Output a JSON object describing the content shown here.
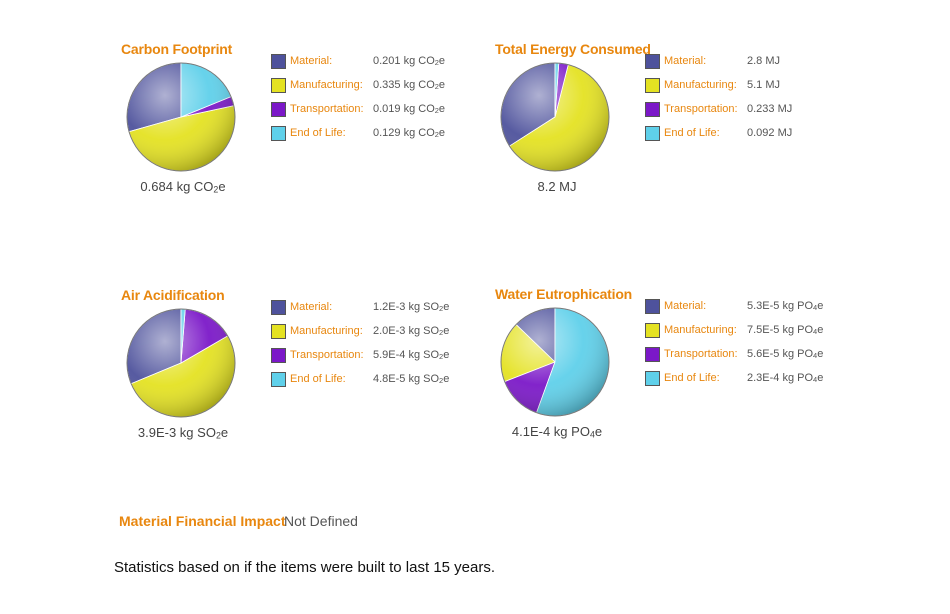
{
  "chart_data": [
    {
      "type": "pie",
      "title": "Carbon Footprint",
      "total": {
        "prefix": "0.684 kg CO",
        "sub": "2",
        "suffix": "e"
      },
      "slices": [
        {
          "label": "Material:",
          "value": 0.201,
          "display": {
            "prefix": "0.201 kg CO",
            "sub": "2",
            "suffix": "e"
          },
          "color": "#4e529c"
        },
        {
          "label": "Manufacturing:",
          "value": 0.335,
          "display": {
            "prefix": "0.335 kg CO",
            "sub": "2",
            "suffix": "e"
          },
          "color": "#e4e222"
        },
        {
          "label": "Transportation:",
          "value": 0.019,
          "display": {
            "prefix": "0.019 kg CO",
            "sub": "2",
            "suffix": "e"
          },
          "color": "#7b18c8"
        },
        {
          "label": "End of Life:",
          "value": 0.129,
          "display": {
            "prefix": "0.129 kg CO",
            "sub": "2",
            "suffix": "e"
          },
          "color": "#5fd0ea"
        }
      ]
    },
    {
      "type": "pie",
      "title": "Total Energy Consumed",
      "total": {
        "prefix": "8.2 MJ",
        "sub": "",
        "suffix": ""
      },
      "slices": [
        {
          "label": "Material:",
          "value": 2.8,
          "display": {
            "prefix": "2.8 MJ",
            "sub": "",
            "suffix": ""
          },
          "color": "#4e529c"
        },
        {
          "label": "Manufacturing:",
          "value": 5.1,
          "display": {
            "prefix": "5.1 MJ",
            "sub": "",
            "suffix": ""
          },
          "color": "#e4e222"
        },
        {
          "label": "Transportation:",
          "value": 0.233,
          "display": {
            "prefix": "0.233 MJ",
            "sub": "",
            "suffix": ""
          },
          "color": "#7b18c8"
        },
        {
          "label": "End of Life:",
          "value": 0.092,
          "display": {
            "prefix": "0.092 MJ",
            "sub": "",
            "suffix": ""
          },
          "color": "#5fd0ea"
        }
      ]
    },
    {
      "type": "pie",
      "title": "Air Acidification",
      "total": {
        "prefix": "3.9E-3 kg SO",
        "sub": "2",
        "suffix": "e"
      },
      "slices": [
        {
          "label": "Material:",
          "value": 0.0012,
          "display": {
            "prefix": "1.2E-3 kg SO",
            "sub": "2",
            "suffix": "e"
          },
          "color": "#4e529c"
        },
        {
          "label": "Manufacturing:",
          "value": 0.002,
          "display": {
            "prefix": "2.0E-3 kg SO",
            "sub": "2",
            "suffix": "e"
          },
          "color": "#e4e222"
        },
        {
          "label": "Transportation:",
          "value": 0.00059,
          "display": {
            "prefix": "5.9E-4 kg SO",
            "sub": "2",
            "suffix": "e"
          },
          "color": "#7b18c8"
        },
        {
          "label": "End of Life:",
          "value": 4.8e-05,
          "display": {
            "prefix": "4.8E-5 kg SO",
            "sub": "2",
            "suffix": "e"
          },
          "color": "#5fd0ea"
        }
      ]
    },
    {
      "type": "pie",
      "title": "Water Eutrophication",
      "total": {
        "prefix": "4.1E-4 kg PO",
        "sub": "4",
        "suffix": "e"
      },
      "slices": [
        {
          "label": "Material:",
          "value": 5.3e-05,
          "display": {
            "prefix": "5.3E-5 kg PO",
            "sub": "4",
            "suffix": "e"
          },
          "color": "#4e529c"
        },
        {
          "label": "Manufacturing:",
          "value": 7.5e-05,
          "display": {
            "prefix": "7.5E-5 kg PO",
            "sub": "4",
            "suffix": "e"
          },
          "color": "#e4e222"
        },
        {
          "label": "Transportation:",
          "value": 5.6e-05,
          "display": {
            "prefix": "5.6E-5 kg PO",
            "sub": "4",
            "suffix": "e"
          },
          "color": "#7b18c8"
        },
        {
          "label": "End of Life:",
          "value": 0.00023,
          "display": {
            "prefix": "2.3E-4 kg PO",
            "sub": "4",
            "suffix": "e"
          },
          "color": "#5fd0ea"
        }
      ]
    }
  ],
  "financial": {
    "label": "Material Financial Impact",
    "value": "Not Defined"
  },
  "footnote": "Statistics based on if the items were built to last 15 years."
}
